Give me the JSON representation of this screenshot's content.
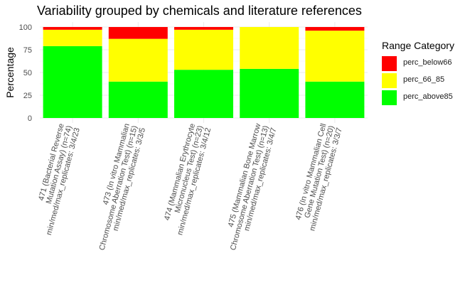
{
  "chart_data": {
    "type": "bar",
    "stacked": true,
    "title": "Variability grouped by chemicals and literature references",
    "xlabel": "",
    "ylabel": "Percentage",
    "ylim": [
      0,
      100
    ],
    "yticks": [
      0,
      25,
      50,
      75,
      100
    ],
    "grid": true,
    "legend_title": "Range Category",
    "legend_position": "right",
    "categories": [
      [
        "471 (Bacterial Reverse",
        "Mutation Assay) (n=74)",
        "min/med/max_replicates: 3/4/23"
      ],
      [
        "473 (In vitro Mammalian",
        "Chromosome Aberration Test) (n=15)",
        "min/med/max_replicates: 3/3/5"
      ],
      [
        "474 (Mammalian Erythrocyte",
        "Micronucleus Test) (n=23)",
        "min/med/max_replicates: 3/4/12"
      ],
      [
        "475 (Mammalian Bone Marrow",
        "Chromosome Aberration Test) (n=13)",
        "min/med/max_replicates: 3/4/7"
      ],
      [
        "476 (In vitro Mammalian Cell",
        "Gene Mutation Test) (n=20)",
        "min/med/max_replicates: 3/3/7"
      ]
    ],
    "series": [
      {
        "name": "perc_above85",
        "color": "#00ff00",
        "values": [
          79,
          40,
          53,
          54,
          40
        ]
      },
      {
        "name": "perc_66_85",
        "color": "#ffff00",
        "values": [
          18,
          47,
          44,
          46,
          56
        ]
      },
      {
        "name": "perc_below66",
        "color": "#ff0000",
        "values": [
          3,
          13,
          3,
          0,
          4
        ]
      }
    ],
    "legend_order": [
      "perc_below66",
      "perc_66_85",
      "perc_above85"
    ]
  }
}
